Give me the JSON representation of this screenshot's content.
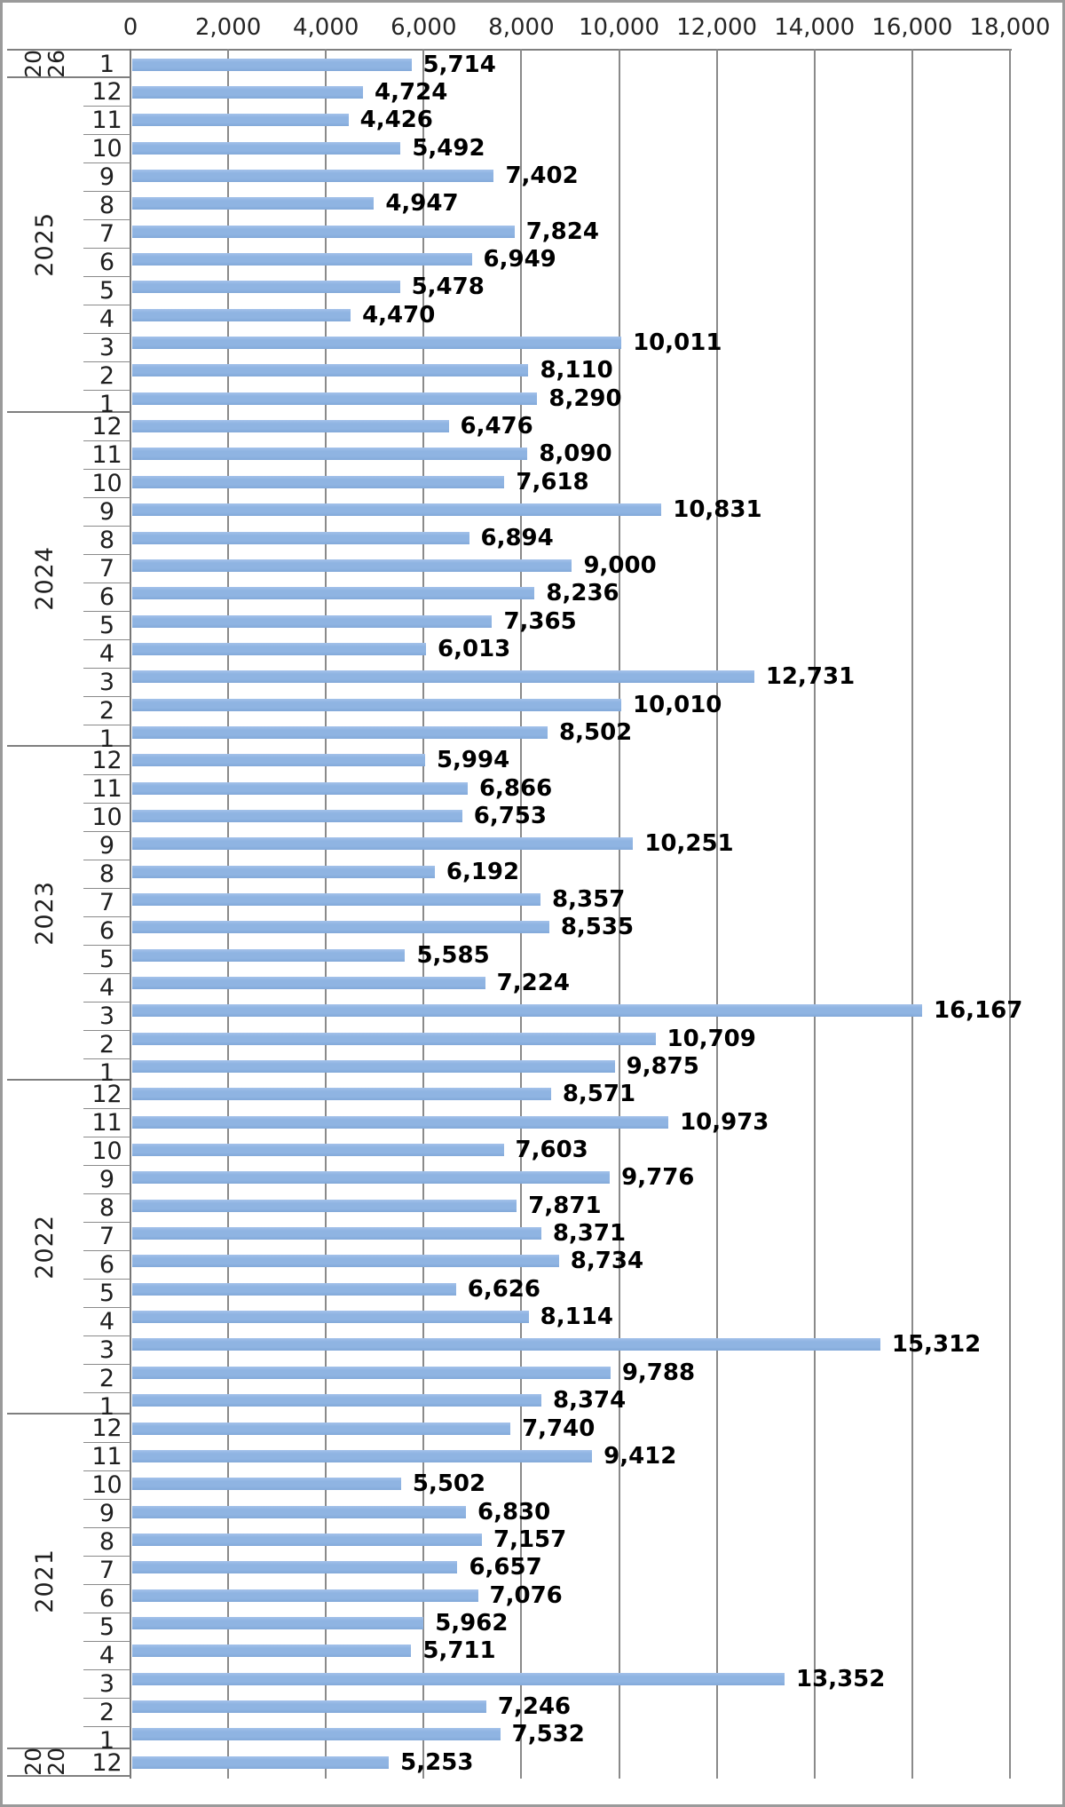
{
  "chart_data": {
    "type": "bar",
    "orientation": "horizontal",
    "title": "",
    "xlabel": "",
    "ylabel": "",
    "value_axis": {
      "position": "top",
      "min": 0,
      "max": 18000,
      "tick_step": 2000,
      "tick_labels": [
        "0",
        "2,000",
        "4,000",
        "6,000",
        "8,000",
        "10,000",
        "12,000",
        "14,000",
        "16,000",
        "18,000"
      ],
      "gridlines": true
    },
    "category_axis": {
      "levels": [
        "year",
        "month"
      ]
    },
    "colors": {
      "bar": "#8FB4E2",
      "gridline": "#8A8A8A",
      "axis_line": "#7F7F7F",
      "value_label_text": "#000000",
      "axis_text": "#262626",
      "figure_border": "#9A9A9A"
    },
    "groups": [
      {
        "year": "2026",
        "year_lines": [
          "20",
          "26"
        ],
        "rows": [
          {
            "month": "1",
            "value": 5714,
            "label": "5,714"
          }
        ]
      },
      {
        "year": "2025",
        "year_lines": [
          "2025"
        ],
        "rows": [
          {
            "month": "12",
            "value": 4724,
            "label": "4,724"
          },
          {
            "month": "11",
            "value": 4426,
            "label": "4,426"
          },
          {
            "month": "10",
            "value": 5492,
            "label": "5,492"
          },
          {
            "month": "9",
            "value": 7402,
            "label": "7,402"
          },
          {
            "month": "8",
            "value": 4947,
            "label": "4,947"
          },
          {
            "month": "7",
            "value": 7824,
            "label": "7,824"
          },
          {
            "month": "6",
            "value": 6949,
            "label": "6,949"
          },
          {
            "month": "5",
            "value": 5478,
            "label": "5,478"
          },
          {
            "month": "4",
            "value": 4470,
            "label": "4,470"
          },
          {
            "month": "3",
            "value": 10011,
            "label": "10,011"
          },
          {
            "month": "2",
            "value": 8110,
            "label": "8,110"
          },
          {
            "month": "1",
            "value": 8290,
            "label": "8,290"
          }
        ]
      },
      {
        "year": "2024",
        "year_lines": [
          "2024"
        ],
        "rows": [
          {
            "month": "12",
            "value": 6476,
            "label": "6,476"
          },
          {
            "month": "11",
            "value": 8090,
            "label": "8,090"
          },
          {
            "month": "10",
            "value": 7618,
            "label": "7,618"
          },
          {
            "month": "9",
            "value": 10831,
            "label": "10,831"
          },
          {
            "month": "8",
            "value": 6894,
            "label": "6,894"
          },
          {
            "month": "7",
            "value": 9000,
            "label": "9,000"
          },
          {
            "month": "6",
            "value": 8236,
            "label": "8,236"
          },
          {
            "month": "5",
            "value": 7365,
            "label": "7,365"
          },
          {
            "month": "4",
            "value": 6013,
            "label": "6,013"
          },
          {
            "month": "3",
            "value": 12731,
            "label": "12,731"
          },
          {
            "month": "2",
            "value": 10010,
            "label": "10,010"
          },
          {
            "month": "1",
            "value": 8502,
            "label": "8,502"
          }
        ]
      },
      {
        "year": "2023",
        "year_lines": [
          "2023"
        ],
        "rows": [
          {
            "month": "12",
            "value": 5994,
            "label": "5,994"
          },
          {
            "month": "11",
            "value": 6866,
            "label": "6,866"
          },
          {
            "month": "10",
            "value": 6753,
            "label": "6,753"
          },
          {
            "month": "9",
            "value": 10251,
            "label": "10,251"
          },
          {
            "month": "8",
            "value": 6192,
            "label": "6,192"
          },
          {
            "month": "7",
            "value": 8357,
            "label": "8,357"
          },
          {
            "month": "6",
            "value": 8535,
            "label": "8,535"
          },
          {
            "month": "5",
            "value": 5585,
            "label": "5,585"
          },
          {
            "month": "4",
            "value": 7224,
            "label": "7,224"
          },
          {
            "month": "3",
            "value": 16167,
            "label": "16,167"
          },
          {
            "month": "2",
            "value": 10709,
            "label": "10,709"
          },
          {
            "month": "1",
            "value": 9875,
            "label": "9,875"
          }
        ]
      },
      {
        "year": "2022",
        "year_lines": [
          "2022"
        ],
        "rows": [
          {
            "month": "12",
            "value": 8571,
            "label": "8,571"
          },
          {
            "month": "11",
            "value": 10973,
            "label": "10,973"
          },
          {
            "month": "10",
            "value": 7603,
            "label": "7,603"
          },
          {
            "month": "9",
            "value": 9776,
            "label": "9,776"
          },
          {
            "month": "8",
            "value": 7871,
            "label": "7,871"
          },
          {
            "month": "7",
            "value": 8371,
            "label": "8,371"
          },
          {
            "month": "6",
            "value": 8734,
            "label": "8,734"
          },
          {
            "month": "5",
            "value": 6626,
            "label": "6,626"
          },
          {
            "month": "4",
            "value": 8114,
            "label": "8,114"
          },
          {
            "month": "3",
            "value": 15312,
            "label": "15,312"
          },
          {
            "month": "2",
            "value": 9788,
            "label": "9,788"
          },
          {
            "month": "1",
            "value": 8374,
            "label": "8,374"
          }
        ]
      },
      {
        "year": "2021",
        "year_lines": [
          "2021"
        ],
        "rows": [
          {
            "month": "12",
            "value": 7740,
            "label": "7,740"
          },
          {
            "month": "11",
            "value": 9412,
            "label": "9,412"
          },
          {
            "month": "10",
            "value": 5502,
            "label": "5,502"
          },
          {
            "month": "9",
            "value": 6830,
            "label": "6,830"
          },
          {
            "month": "8",
            "value": 7157,
            "label": "7,157"
          },
          {
            "month": "7",
            "value": 6657,
            "label": "6,657"
          },
          {
            "month": "6",
            "value": 7076,
            "label": "7,076"
          },
          {
            "month": "5",
            "value": 5962,
            "label": "5,962"
          },
          {
            "month": "4",
            "value": 5711,
            "label": "5,711"
          },
          {
            "month": "3",
            "value": 13352,
            "label": "13,352"
          },
          {
            "month": "2",
            "value": 7246,
            "label": "7,246"
          },
          {
            "month": "1",
            "value": 7532,
            "label": "7,532"
          }
        ]
      },
      {
        "year": "2020",
        "year_lines": [
          "20",
          "20"
        ],
        "rows": [
          {
            "month": "12",
            "value": 5253,
            "label": "5,253"
          }
        ]
      }
    ]
  }
}
